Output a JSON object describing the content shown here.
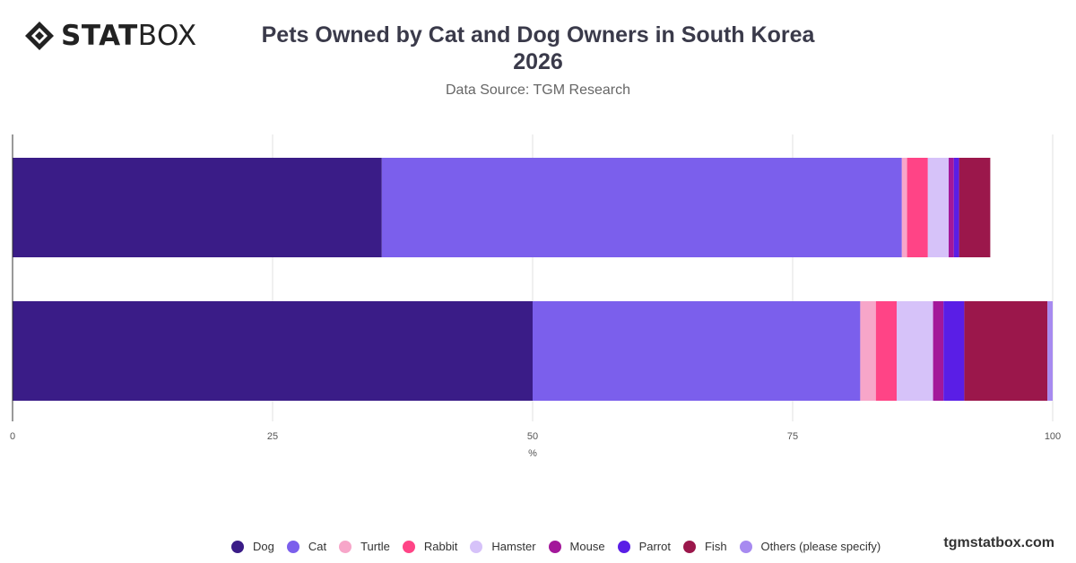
{
  "brand": {
    "logo_bold": "STAT",
    "logo_light": "BOX",
    "site": "tgmstatbox.com"
  },
  "header": {
    "title_line1": "Pets Owned by Cat and Dog Owners in South Korea",
    "title_line2": "2026",
    "subtitle": "Data Source: TGM Research"
  },
  "chart_data": {
    "type": "bar",
    "orientation": "horizontal",
    "stacked": true,
    "title": "Pets Owned by Cat and Dog Owners in South Korea 2026",
    "subtitle": "Data Source: TGM Research",
    "xlabel": "%",
    "xlim": [
      0,
      100
    ],
    "xticks": [
      0,
      25,
      50,
      75,
      100
    ],
    "grid": true,
    "legend_position": "bottom",
    "categories": [
      "",
      ""
    ],
    "series": [
      {
        "name": "Dog",
        "color": "#3a1c87",
        "values": [
          35.5,
          50
        ]
      },
      {
        "name": "Cat",
        "color": "#7b5fec",
        "values": [
          50,
          31.5
        ]
      },
      {
        "name": "Turtle",
        "color": "#f7a6c9",
        "values": [
          0.5,
          1.5
        ]
      },
      {
        "name": "Rabbit",
        "color": "#ff4486",
        "values": [
          2,
          2
        ]
      },
      {
        "name": "Hamster",
        "color": "#d6c2f9",
        "values": [
          2,
          3.5
        ]
      },
      {
        "name": "Mouse",
        "color": "#a3189a",
        "values": [
          0.5,
          1
        ]
      },
      {
        "name": "Parrot",
        "color": "#5a1ee6",
        "values": [
          0.5,
          2
        ]
      },
      {
        "name": "Fish",
        "color": "#9b174b",
        "values": [
          3,
          8
        ]
      },
      {
        "name": "Others (please specify)",
        "color": "#a78af0",
        "values": [
          0,
          0.5
        ]
      }
    ]
  }
}
